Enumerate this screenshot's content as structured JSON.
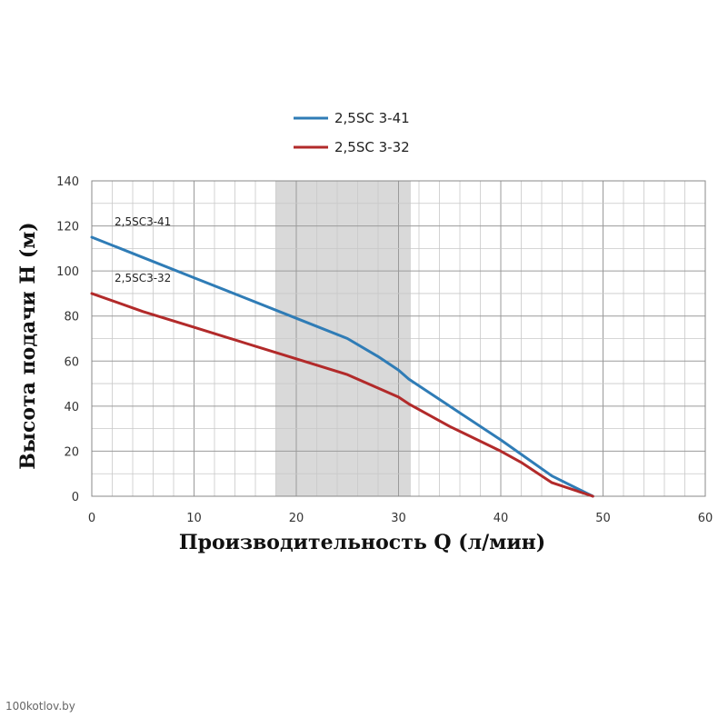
{
  "chart_data": {
    "type": "line",
    "xlabel": "Производительность Q (л/мин)",
    "ylabel": "Высота подачи H (м)",
    "xlim": [
      0,
      60
    ],
    "ylim": [
      0,
      140
    ],
    "xticks": [
      0,
      10,
      20,
      30,
      40,
      50,
      60
    ],
    "yticks": [
      0,
      20,
      40,
      60,
      80,
      100,
      120,
      140
    ],
    "grid": true,
    "legend_position": "top-center",
    "highlight_band": {
      "x": [
        18,
        31.2
      ],
      "color": "#d9d9d9"
    },
    "series": [
      {
        "name": "2,5SC 3-41",
        "label": "2,5SC3-41",
        "color": "#2f7cb6",
        "x": [
          0,
          5,
          10,
          15,
          20,
          25,
          28,
          30,
          31,
          35,
          40,
          45,
          49
        ],
        "y": [
          115,
          106,
          97,
          88,
          79,
          70,
          62,
          56,
          52,
          40,
          25,
          9,
          0
        ]
      },
      {
        "name": "2,5SC 3-32",
        "label": "2,5SC3-32",
        "color": "#b22a2a",
        "x": [
          0,
          5,
          10,
          15,
          20,
          25,
          28,
          30,
          31,
          35,
          40,
          42,
          45,
          49
        ],
        "y": [
          90,
          82,
          75,
          68,
          61,
          54,
          48,
          44,
          41,
          31,
          20,
          15,
          6,
          0
        ]
      }
    ]
  },
  "watermark": "100kotlov.by"
}
